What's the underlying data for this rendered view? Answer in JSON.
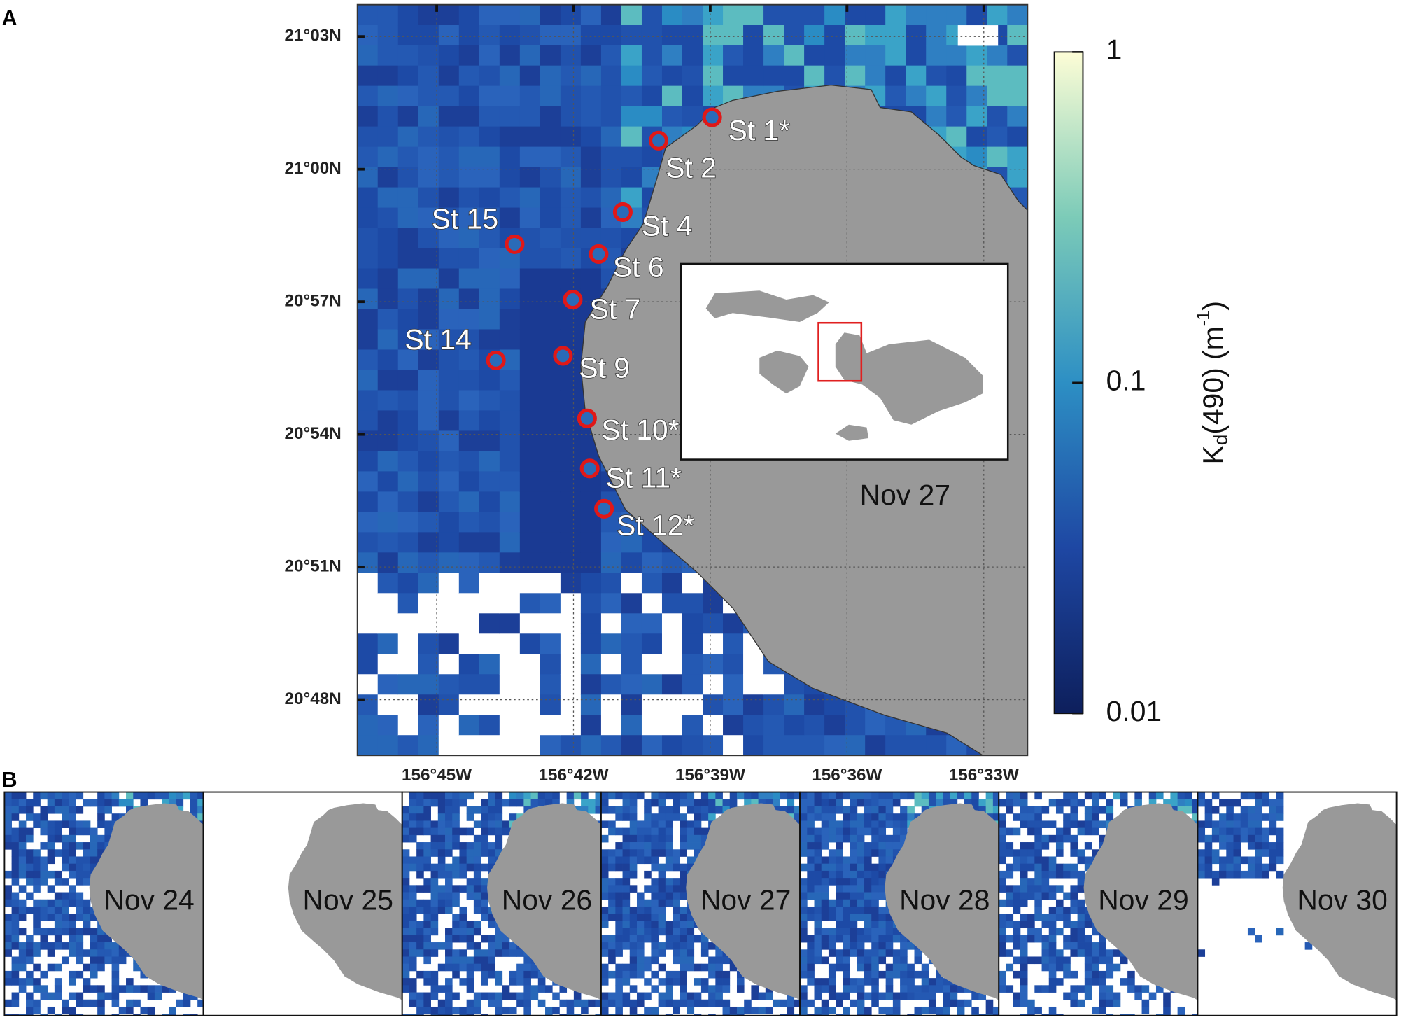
{
  "panels": {
    "a": "A",
    "b": "B"
  },
  "map": {
    "latlim": [
      20.779,
      21.062
    ],
    "lonlim": [
      -156.779,
      -156.534
    ],
    "lat_ticks": [
      {
        "value": 21.05,
        "label": "21°03N"
      },
      {
        "value": 21.0,
        "label": "21°00N"
      },
      {
        "value": 20.95,
        "label": "20°57N"
      },
      {
        "value": 20.9,
        "label": "20°54N"
      },
      {
        "value": 20.85,
        "label": "20°51N"
      },
      {
        "value": 20.8,
        "label": "20°48N"
      }
    ],
    "lon_ticks": [
      {
        "value": -156.75,
        "label": "156°45W"
      },
      {
        "value": -156.7,
        "label": "156°42W"
      },
      {
        "value": -156.65,
        "label": "156°39W"
      },
      {
        "value": -156.6,
        "label": "156°36W"
      },
      {
        "value": -156.55,
        "label": "156°33W"
      }
    ],
    "stations": [
      "St 1*",
      "St 2",
      "St 4",
      "St 15",
      "St 6",
      "St 7",
      "St 14",
      "St 9",
      "St 10*",
      "St 11*",
      "St 12*"
    ],
    "date": "Nov 27"
  },
  "colorbar": {
    "label_main": "K",
    "label_sub": "d",
    "label_mid": "(490) (m",
    "label_sup": "-1",
    "label_end": ")",
    "lim": [
      0.01,
      1
    ],
    "log": true,
    "ticks": [
      0.01,
      0.1,
      1
    ]
  },
  "dates": [
    "Nov 24",
    "Nov 25",
    "Nov 26",
    "Nov 27",
    "Nov 28",
    "Nov 29",
    "Nov 30"
  ]
}
